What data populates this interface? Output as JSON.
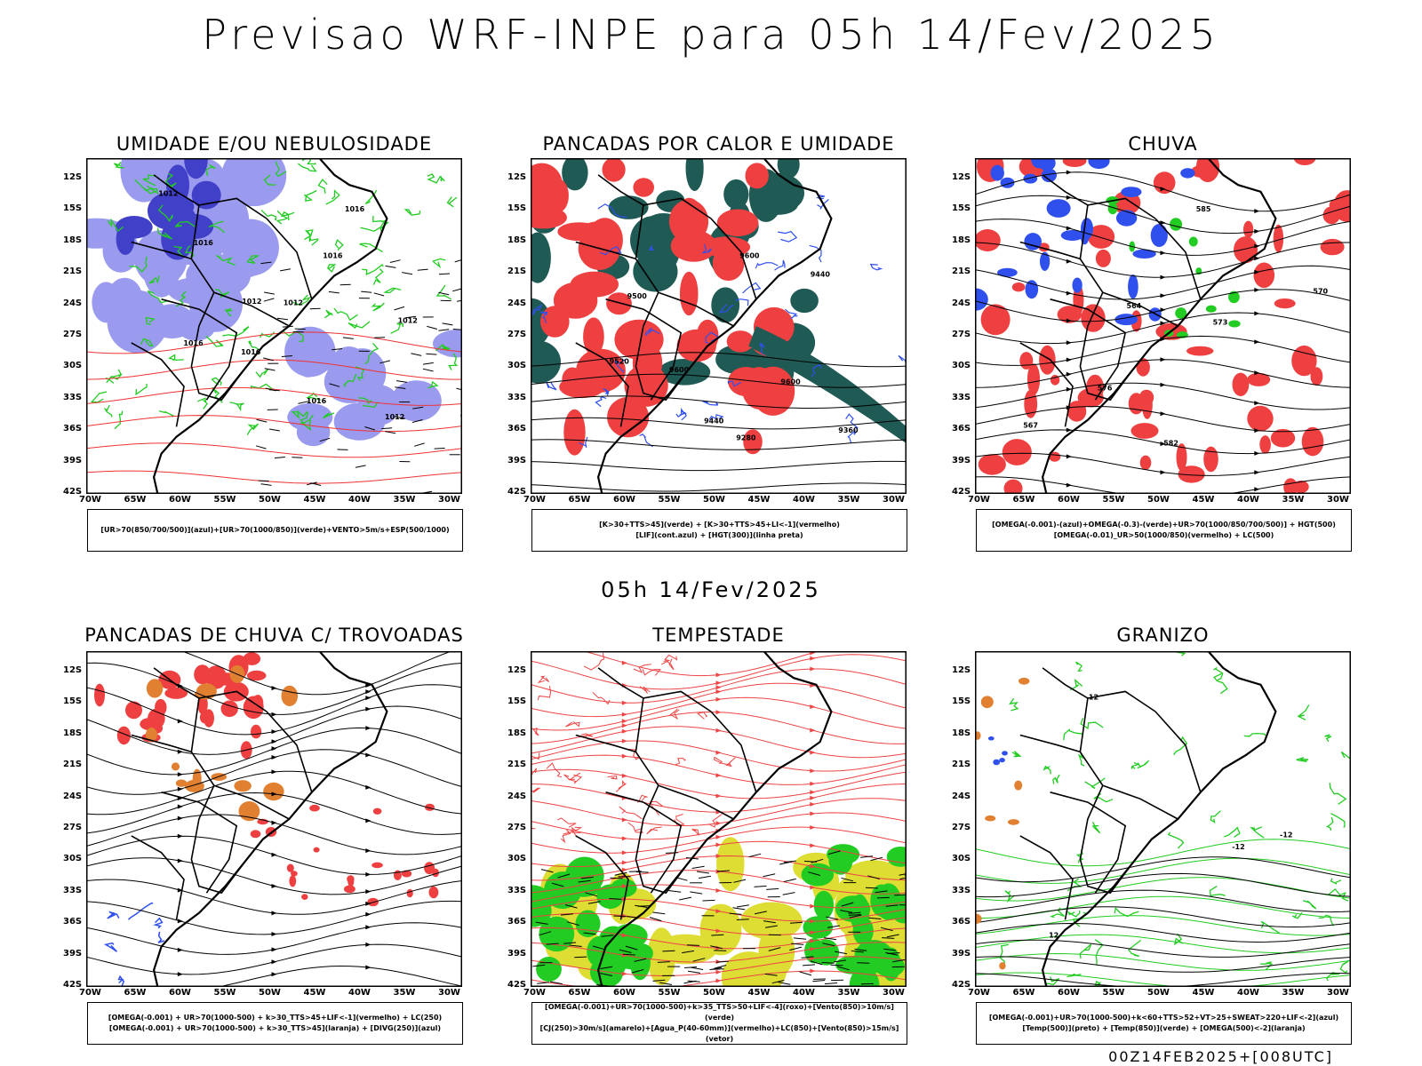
{
  "title": "Previsao WRF-INPE  para 05h 14/Fev/2025",
  "mid_title": "05h 14/Fev/2025",
  "footer": "00Z14FEB2025+[008UTC]",
  "lat_labels": [
    "12S",
    "15S",
    "18S",
    "21S",
    "24S",
    "27S",
    "30S",
    "33S",
    "36S",
    "39S",
    "42S"
  ],
  "lon_labels": [
    "70W",
    "65W",
    "60W",
    "55W",
    "50W",
    "45W",
    "40W",
    "35W",
    "30W"
  ],
  "colors": {
    "humid_blue": "#9a9aee",
    "deep_blue": "#4040c8",
    "green": "#22cc22",
    "red": "#ee4040",
    "dark_teal": "#1f5a55",
    "orange": "#e08030",
    "yellow": "#dddd33",
    "bright_blue": "#3050ee"
  },
  "panels": [
    {
      "title": "UMIDADE E/OU NEBULOSIDADE",
      "legend": [
        "[UR>70(850/700/500)](azul)+[UR>70(1000/850)](verde)+VENTO>5m/s+ESP(500/1000)"
      ]
    },
    {
      "title": "PANCADAS POR CALOR E UMIDADE",
      "legend": [
        "[K>30+TTS>45](verde) + [K>30+TTS>45+LI<-1](vermelho)",
        "[LIF](cont.azul) + [HGT(300)](linha preta)"
      ]
    },
    {
      "title": "CHUVA",
      "legend": [
        "[OMEGA(-0.001)-(azul)+OMEGA(-0.3)-(verde)+UR>70(1000/850/700/500)] + HGT(500)",
        "[OMEGA(-0.01)_UR>50(1000/850)(vermelho) + LC(500)"
      ]
    },
    {
      "title": "PANCADAS DE CHUVA C/ TROVOADAS",
      "legend": [
        "[OMEGA(-0.001) + UR>70(1000-500) + k>30_TTS>45+LIF<-1](vermelho) + LC(250)",
        "[OMEGA(-0.001) + UR>70(1000-500) + k>30_TTS>45](laranja) + [DIVG(250)](azul)"
      ]
    },
    {
      "title": "TEMPESTADE",
      "legend": [
        "[OMEGA(-0.001)+UR>70(1000-500)+k>35_TTS>50+LIF<-4](roxo)+[Vento(850)>10m/s](verde)",
        "[CJ(250)>30m/s](amarelo)+[Agua_P(40-60mm)](vermelho)+LC(850)+[Vento(850)>15m/s](vetor)"
      ]
    },
    {
      "title": "GRANIZO",
      "legend": [
        "[OMEGA(-0.001)+UR>70(1000-500)+k<60+TTS>52+VT>25+SWEAT>220+LIF<-2](azul)",
        "[Temp(500)](preto) + [Temp(850)](verde) + [OMEGA(500)<-2](laranja)"
      ]
    }
  ],
  "contour_labels": {
    "panel1": [
      "1012",
      "1012",
      "1016",
      "1016",
      "1012",
      "1012",
      "1016",
      "1016",
      "1012",
      "1016",
      "1016"
    ],
    "panel2": [
      "9600",
      "9600",
      "9600",
      "9520",
      "9500",
      "9440",
      "9440",
      "9360",
      "9280"
    ],
    "panel3": [
      "585",
      "582",
      "576",
      "573",
      "570",
      "567",
      "564"
    ],
    "panel6": [
      "-12",
      "-12",
      "12",
      "12"
    ]
  }
}
